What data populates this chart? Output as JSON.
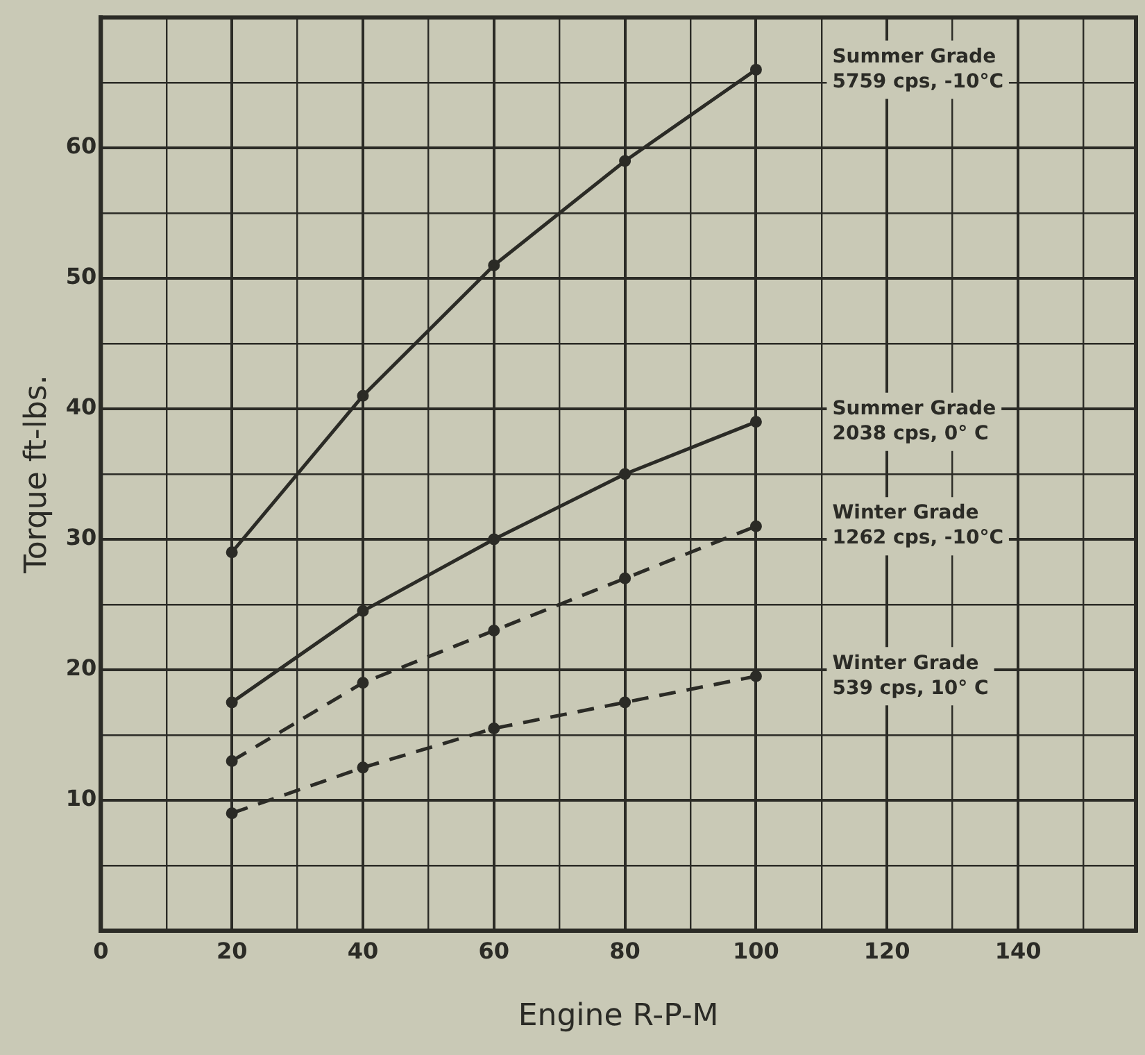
{
  "chart_data": {
    "type": "line",
    "xlabel": "Engine R-P-M",
    "ylabel": "Torque ft-lbs.",
    "xlim": [
      0,
      158
    ],
    "ylim": [
      0,
      70
    ],
    "xticks": [
      0,
      {
        "value": 10,
        "label": null
      },
      20,
      {
        "value": 30,
        "label": null
      },
      40,
      {
        "value": 50,
        "label": null
      },
      60,
      {
        "value": 70,
        "label": null
      },
      80,
      {
        "value": 90,
        "label": null
      },
      100,
      {
        "value": 110,
        "label": null
      },
      120,
      {
        "value": 130,
        "label": null
      },
      140,
      {
        "value": 150,
        "label": null
      }
    ],
    "yticks": [
      {
        "value": 5,
        "label": null
      },
      10,
      {
        "value": 15,
        "label": null
      },
      20,
      {
        "value": 25,
        "label": null
      },
      30,
      {
        "value": 35,
        "label": null
      },
      40,
      {
        "value": 45,
        "label": null
      },
      50,
      {
        "value": 55,
        "label": null
      },
      60,
      {
        "value": 65,
        "label": null
      }
    ],
    "grid": true,
    "legend": false,
    "marker": "circle",
    "series": [
      {
        "name": "Summer Grade\n5759 cps, -10°C",
        "color": "#2b2b26",
        "line_style": "solid",
        "x": [
          20,
          40,
          60,
          80,
          100
        ],
        "values": [
          29,
          41,
          51,
          59,
          66
        ]
      },
      {
        "name": "Summer Grade\n2038 cps, 0° C",
        "color": "#2b2b26",
        "line_style": "solid",
        "x": [
          20,
          40,
          60,
          80,
          100
        ],
        "values": [
          17.5,
          24.5,
          30,
          35,
          39
        ]
      },
      {
        "name": "Winter Grade\n1262 cps, -10°C",
        "color": "#2b2b26",
        "line_style": "dashed",
        "x": [
          20,
          40,
          60,
          80,
          100
        ],
        "values": [
          13,
          19,
          23,
          27,
          31
        ]
      },
      {
        "name": "Winter Grade\n539 cps, 10° C",
        "color": "#2b2b26",
        "line_style": "dashed",
        "x": [
          20,
          40,
          60,
          80,
          100
        ],
        "values": [
          9,
          12.5,
          15.5,
          17.5,
          19.5
        ]
      }
    ]
  }
}
